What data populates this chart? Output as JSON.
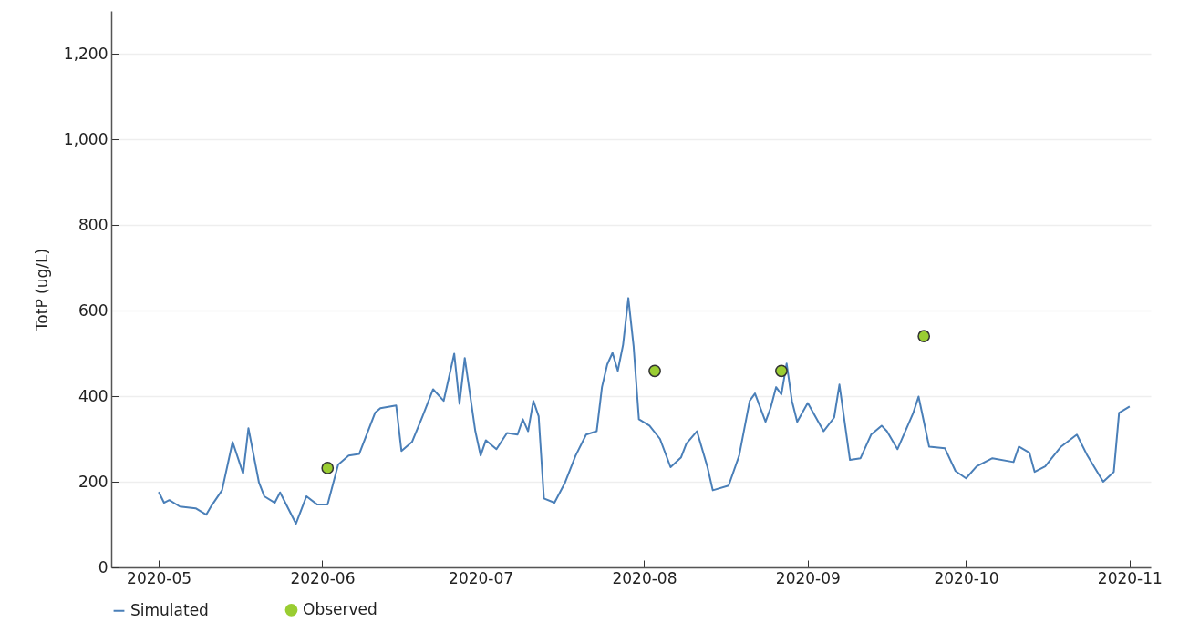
{
  "chart_data": {
    "type": "line",
    "ylabel": "TotP (ug/L)",
    "xlim": [
      "2020-04-22",
      "2020-11-05"
    ],
    "xticks": [
      {
        "value": "2020-05",
        "label": "2020-05"
      },
      {
        "value": "2020-06",
        "label": "2020-06"
      },
      {
        "value": "2020-07",
        "label": "2020-07"
      },
      {
        "value": "2020-08",
        "label": "2020-08"
      },
      {
        "value": "2020-09",
        "label": "2020-09"
      },
      {
        "value": "2020-10",
        "label": "2020-10"
      },
      {
        "value": "2020-11",
        "label": "2020-11"
      }
    ],
    "ylim": [
      0,
      1300
    ],
    "yticks": [
      {
        "value": 0,
        "label": "0"
      },
      {
        "value": 200,
        "label": "200"
      },
      {
        "value": 400,
        "label": "400"
      },
      {
        "value": 600,
        "label": "600"
      },
      {
        "value": 800,
        "label": "800"
      },
      {
        "value": 1000,
        "label": "1,000"
      },
      {
        "value": 1200,
        "label": "1,200"
      }
    ],
    "grid": "y",
    "legend": "bottom",
    "series": [
      {
        "name": "Simulated",
        "color": "#4a7fb8",
        "line_style": "solid",
        "x": [
          "2020-05-01",
          "2020-05-02",
          "2020-05-03",
          "2020-05-05",
          "2020-05-08",
          "2020-05-10",
          "2020-05-11",
          "2020-05-13",
          "2020-05-15",
          "2020-05-17",
          "2020-05-18",
          "2020-05-20",
          "2020-05-21",
          "2020-05-23",
          "2020-05-24",
          "2020-05-27",
          "2020-05-29",
          "2020-05-31",
          "2020-06-02",
          "2020-06-04",
          "2020-06-06",
          "2020-06-08",
          "2020-06-11",
          "2020-06-12",
          "2020-06-15",
          "2020-06-16",
          "2020-06-18",
          "2020-06-20",
          "2020-06-22",
          "2020-06-24",
          "2020-06-26",
          "2020-06-27",
          "2020-06-28",
          "2020-06-30",
          "2020-07-01",
          "2020-07-02",
          "2020-07-04",
          "2020-07-06",
          "2020-07-08",
          "2020-07-09",
          "2020-07-10",
          "2020-07-11",
          "2020-07-12",
          "2020-07-13",
          "2020-07-15",
          "2020-07-17",
          "2020-07-19",
          "2020-07-21",
          "2020-07-23",
          "2020-07-24",
          "2020-07-25",
          "2020-07-26",
          "2020-07-27",
          "2020-07-28",
          "2020-07-29",
          "2020-07-30",
          "2020-07-31",
          "2020-08-02",
          "2020-08-04",
          "2020-08-06",
          "2020-08-08",
          "2020-08-09",
          "2020-08-11",
          "2020-08-13",
          "2020-08-14",
          "2020-08-17",
          "2020-08-19",
          "2020-08-21",
          "2020-08-22",
          "2020-08-24",
          "2020-08-25",
          "2020-08-26",
          "2020-08-27",
          "2020-08-28",
          "2020-08-29",
          "2020-08-30",
          "2020-09-01",
          "2020-09-04",
          "2020-09-06",
          "2020-09-07",
          "2020-09-09",
          "2020-09-11",
          "2020-09-13",
          "2020-09-15",
          "2020-09-16",
          "2020-09-18",
          "2020-09-21",
          "2020-09-22",
          "2020-09-24",
          "2020-09-27",
          "2020-09-29",
          "2020-10-01",
          "2020-10-03",
          "2020-10-06",
          "2020-10-10",
          "2020-10-11",
          "2020-10-13",
          "2020-10-14",
          "2020-10-16",
          "2020-10-19",
          "2020-10-22",
          "2020-10-24",
          "2020-10-27",
          "2020-10-29",
          "2020-10-30",
          "2020-11-01"
        ],
        "values": [
          176,
          151,
          157,
          142,
          138,
          123,
          144,
          180,
          293,
          219,
          325,
          198,
          166,
          151,
          175,
          102,
          166,
          147,
          147,
          240,
          261,
          265,
          361,
          372,
          378,
          272,
          293,
          353,
          416,
          389,
          499,
          382,
          489,
          318,
          261,
          297,
          276,
          314,
          310,
          346,
          318,
          389,
          353,
          161,
          151,
          198,
          261,
          310,
          318,
          421,
          474,
          501,
          459,
          520,
          629,
          516,
          346,
          331,
          300,
          234,
          257,
          289,
          318,
          234,
          180,
          191,
          261,
          389,
          406,
          340,
          374,
          421,
          404,
          476,
          389,
          340,
          384,
          318,
          350,
          427,
          251,
          255,
          310,
          331,
          318,
          276,
          361,
          399,
          282,
          278,
          225,
          208,
          236,
          255,
          246,
          282,
          268,
          223,
          236,
          282,
          310,
          261,
          200,
          223,
          361,
          376
        ]
      },
      {
        "name": "Observed",
        "type": "scatter",
        "color": "#9acd32",
        "marker": "circle",
        "x": [
          "2020-06-02",
          "2020-08-03",
          "2020-08-27",
          "2020-09-23"
        ],
        "values": [
          232,
          459,
          459,
          540
        ]
      }
    ]
  }
}
